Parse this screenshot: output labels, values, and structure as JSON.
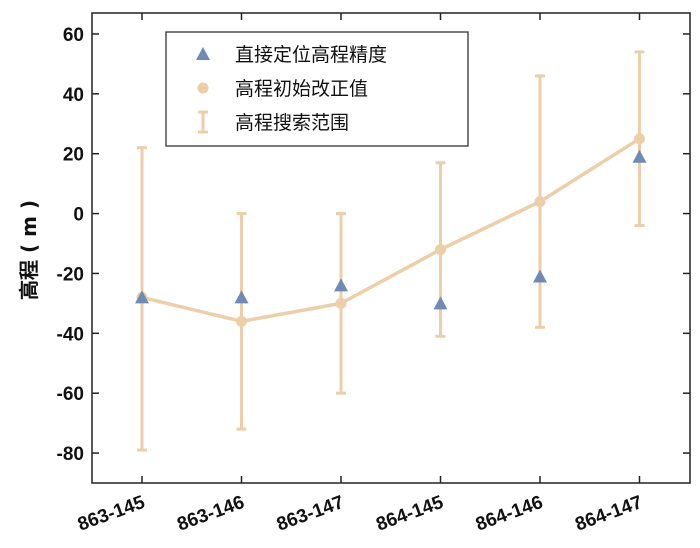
{
  "chart_data": {
    "type": "line",
    "ylabel": "高程 ( m )",
    "ylim": [
      -90,
      67
    ],
    "yticks": [
      60,
      40,
      20,
      0,
      -20,
      -40,
      -60,
      -80
    ],
    "categories": [
      "863-145",
      "863-146",
      "863-147",
      "864-145",
      "864-146",
      "864-147"
    ],
    "grid": false,
    "legend_position": "top-left",
    "series": [
      {
        "name": "直接定位高程精度",
        "kind": "scatter",
        "marker": "triangle-up",
        "color": "#6f8ab3",
        "values": [
          -28,
          -28,
          -24,
          -30,
          -21,
          19
        ]
      },
      {
        "name": "高程初始改正值",
        "kind": "line",
        "marker": "circle",
        "color": "#eccfa8",
        "values": [
          -28,
          -36,
          -30,
          -12,
          4,
          25
        ]
      },
      {
        "name": "高程搜索范围",
        "kind": "errorbar",
        "color": "#eccfa8",
        "lower": [
          -79,
          -72,
          -60,
          -41,
          -38,
          -4
        ],
        "upper": [
          22,
          0,
          0,
          17,
          46,
          54
        ]
      }
    ]
  }
}
